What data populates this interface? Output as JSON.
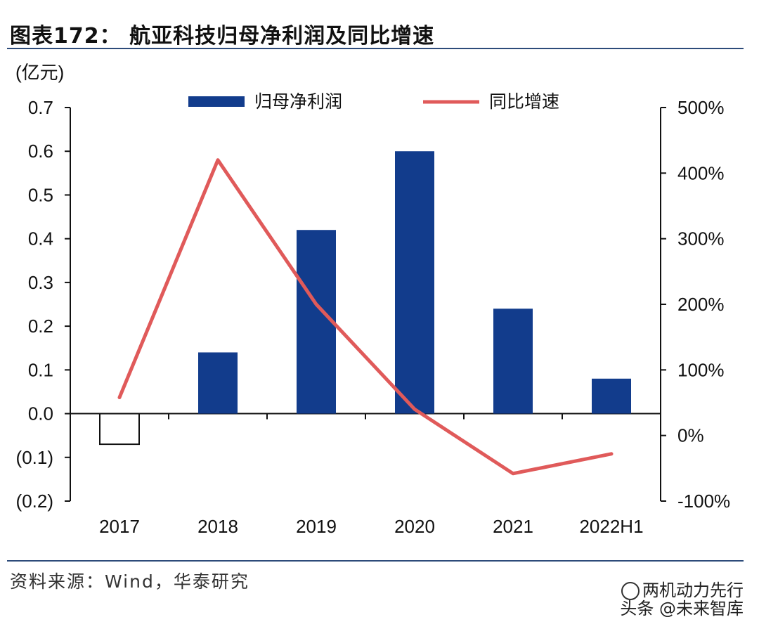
{
  "header": {
    "title": "图表172： 航亚科技归母净利润及同比增速"
  },
  "footer": {
    "source": "资料来源：Wind，华泰研究",
    "watermark_line1": "两机动力先行",
    "watermark_line2": "头条 @未来智库"
  },
  "colors": {
    "bar": "#123c8c",
    "line": "#e05a5a",
    "rule": "#2d4b7a"
  },
  "icons": {
    "watermark": "wechat-icon"
  },
  "chart_data": {
    "type": "bar",
    "unit_label": "(亿元)",
    "categories": [
      "2017",
      "2018",
      "2019",
      "2020",
      "2021",
      "2022H1"
    ],
    "series": [
      {
        "name": "归母净利润",
        "type": "bar",
        "axis": "left",
        "values": [
          -0.07,
          0.14,
          0.42,
          0.6,
          0.24,
          0.08
        ]
      },
      {
        "name": "同比增速",
        "type": "line",
        "axis": "right",
        "values": [
          58,
          420,
          200,
          40,
          -58,
          -28
        ]
      }
    ],
    "left_axis": {
      "ylim": [
        -0.2,
        0.7
      ],
      "ticks": [
        0.7,
        0.6,
        0.5,
        0.4,
        0.3,
        0.2,
        0.1,
        0.0,
        -0.1,
        -0.2
      ],
      "tick_labels": [
        "0.7",
        "0.6",
        "0.5",
        "0.4",
        "0.3",
        "0.2",
        "0.1",
        "0.0",
        "(0.1)",
        "(0.2)"
      ]
    },
    "right_axis": {
      "ylim": [
        -100,
        500
      ],
      "ticks": [
        500,
        400,
        300,
        200,
        100,
        0,
        -100
      ],
      "tick_labels": [
        "500%",
        "400%",
        "300%",
        "200%",
        "100%",
        "0%",
        "-100%"
      ]
    },
    "legend": {
      "placement": "top",
      "entries": [
        "归母净利润",
        "同比增速"
      ]
    },
    "grid": false
  }
}
